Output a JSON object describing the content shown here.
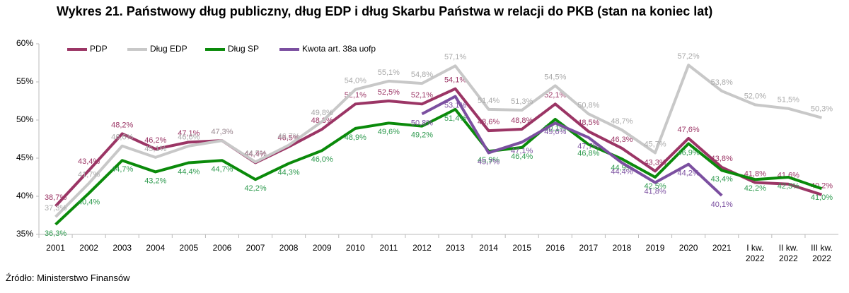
{
  "chart_data": {
    "type": "line",
    "title": "Wykres 21. Państwowy dług publiczny, dług EDP i dług Skarbu Państwa w relacji do PKB (stan na koniec lat)",
    "source": "Źródło: Ministerstwo Finansów",
    "categories": [
      "2001",
      "2002",
      "2003",
      "2004",
      "2005",
      "2006",
      "2007",
      "2008",
      "2009",
      "2010",
      "2011",
      "2012",
      "2013",
      "2014",
      "2015",
      "2016",
      "2017",
      "2018",
      "2019",
      "2020",
      "2021",
      "I kw. 2022",
      "II kw. 2022",
      "III kw. 2022"
    ],
    "ylim": [
      35,
      60
    ],
    "yticks": [
      {
        "value": 35,
        "label": "35%"
      },
      {
        "value": 40,
        "label": "40%"
      },
      {
        "value": 45,
        "label": "45%"
      },
      {
        "value": 50,
        "label": "50%"
      },
      {
        "value": 55,
        "label": "55%"
      },
      {
        "value": 60,
        "label": "60%"
      }
    ],
    "series": [
      {
        "name": "PDP",
        "color": "#9b3565",
        "label_position": "above",
        "values": [
          38.7,
          43.4,
          48.2,
          46.2,
          47.1,
          47.3,
          44.4,
          46.5,
          48.8,
          52.1,
          52.5,
          52.1,
          54.1,
          48.6,
          48.8,
          52.1,
          48.5,
          46.3,
          43.3,
          47.6,
          43.8,
          41.8,
          41.6,
          40.2
        ],
        "value_labels": [
          "38,7%",
          "43,4%",
          "48,2%",
          "46,2%",
          "47,1%",
          "47,3%",
          "44,4%",
          "46,5%",
          "48,8%",
          "52,1%",
          "52,5%",
          "52,1%",
          "54,1%",
          "48,6%",
          "48,8%",
          "52,1%",
          "48,5%",
          "46,3%",
          "43,3%",
          "47,6%",
          "43,8%",
          "41,8%",
          "41,6%",
          "40,2%"
        ]
      },
      {
        "name": "Dług EDP",
        "color": "#c8c8c8",
        "label_position": "above",
        "values": [
          37.3,
          41.7,
          46.6,
          45.1,
          46.6,
          47.3,
          44.5,
          46.7,
          49.8,
          54.0,
          55.1,
          54.8,
          57.1,
          51.4,
          51.3,
          54.5,
          50.8,
          48.7,
          45.7,
          57.2,
          53.8,
          52.0,
          51.5,
          50.3
        ],
        "value_labels": [
          "37,3%",
          "41,7%",
          "46,6%",
          "45,1%",
          "46,6%",
          "47,3%",
          "44,5%",
          "46,7%",
          "49,8%",
          "54,0%",
          "55,1%",
          "54,8%",
          "57,1%",
          "51,4%",
          "51,3%",
          "54,5%",
          "50,8%",
          "48,7%",
          "45,7%",
          "57,2%",
          "53,8%",
          "52,0%",
          "51,5%",
          "50,3%"
        ]
      },
      {
        "name": "Dług SP",
        "color": "#0a8a0a",
        "label_position": "below",
        "values": [
          36.3,
          40.4,
          44.7,
          43.2,
          44.4,
          44.7,
          42.2,
          44.3,
          46.0,
          48.9,
          49.6,
          49.2,
          51.4,
          45.9,
          46.4,
          50.1,
          46.8,
          44.9,
          42.5,
          46.9,
          43.4,
          42.2,
          42.5,
          41.0
        ],
        "value_labels": [
          "36,3%",
          "40,4%",
          "44,7%",
          "43,2%",
          "44,4%",
          "44,7%",
          "42,2%",
          "44,3%",
          "46,0%",
          "48,9%",
          "49,6%",
          "49,2%",
          "51,4%",
          "45,9%",
          "46,4%",
          "50,1%",
          "46,8%",
          "44,9%",
          "42,5%",
          "46,9%",
          "43,4%",
          "42,2%",
          "42,5%",
          "41,0%"
        ]
      },
      {
        "name": "Kwota art. 38a uofp",
        "color": "#7b4fa0",
        "label_position": "below",
        "values": [
          null,
          null,
          null,
          null,
          null,
          null,
          null,
          null,
          null,
          null,
          null,
          50.8,
          53.1,
          45.7,
          47.1,
          49.6,
          47.7,
          44.4,
          41.8,
          44.2,
          40.1,
          null,
          null,
          null
        ],
        "value_labels": [
          null,
          null,
          null,
          null,
          null,
          null,
          null,
          null,
          null,
          null,
          null,
          "50,8%",
          "53,1%",
          "45,7%",
          "47,1%",
          "49,6%",
          "47,7%",
          "44,4%",
          "41,8%",
          "44,2%",
          "40,1%",
          null,
          null,
          null
        ]
      }
    ]
  }
}
